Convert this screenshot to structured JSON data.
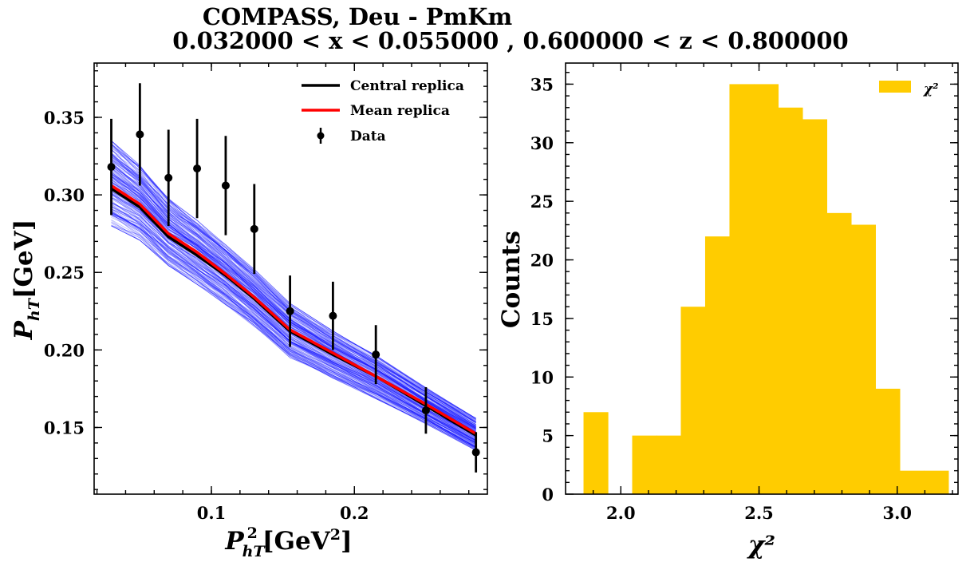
{
  "title": {
    "line1": "COMPASS, Deu - PmKm",
    "line2": "0.032000 < x < 0.055000 , 0.600000 < z < 0.800000"
  },
  "colors": {
    "replica_band": "#0000ff",
    "central": "#000000",
    "mean": "#ff0000",
    "data": "#000000",
    "hist": "#ffcc00"
  },
  "chart_data": [
    {
      "type": "line",
      "xlabel": "P_hT^2 [GeV^2]",
      "ylabel": "P_hT [GeV]",
      "xlim": [
        0.018,
        0.293
      ],
      "ylim": [
        0.107,
        0.385
      ],
      "x_ticks": [
        0.1,
        0.2
      ],
      "x_tick_labels": [
        "0.1",
        "0.2"
      ],
      "y_ticks": [
        0.15,
        0.2,
        0.25,
        0.3,
        0.35
      ],
      "y_tick_labels": [
        "0.15",
        "0.20",
        "0.25",
        "0.30",
        "0.35"
      ],
      "x": [
        0.03,
        0.05,
        0.07,
        0.09,
        0.11,
        0.13,
        0.155,
        0.185,
        0.215,
        0.25,
        0.285
      ],
      "series": [
        {
          "name": "Central replica",
          "kind": "line",
          "color": "#000000",
          "values": [
            0.304,
            0.292,
            0.273,
            0.261,
            0.248,
            0.233,
            0.212,
            0.197,
            0.183,
            0.164,
            0.145
          ]
        },
        {
          "name": "Mean replica",
          "kind": "line",
          "color": "#ff0000",
          "values": [
            0.306,
            0.294,
            0.275,
            0.263,
            0.249,
            0.234,
            0.213,
            0.198,
            0.183,
            0.165,
            0.146
          ]
        },
        {
          "name": "Data",
          "kind": "errorbar",
          "color": "#000000",
          "values": [
            0.318,
            0.339,
            0.311,
            0.317,
            0.306,
            0.278,
            0.225,
            0.222,
            0.197,
            0.161,
            0.134
          ],
          "errors": [
            0.031,
            0.033,
            0.031,
            0.032,
            0.032,
            0.029,
            0.023,
            0.022,
            0.019,
            0.015,
            0.013
          ]
        }
      ],
      "replica_band": {
        "count": 200,
        "lower": [
          0.277,
          0.268,
          0.252,
          0.24,
          0.227,
          0.213,
          0.193,
          0.18,
          0.167,
          0.151,
          0.134
        ],
        "upper": [
          0.338,
          0.322,
          0.3,
          0.286,
          0.27,
          0.254,
          0.232,
          0.214,
          0.198,
          0.177,
          0.157
        ]
      },
      "legend": {
        "position": "upper-right",
        "entries": [
          "Central replica",
          "Mean replica",
          "Data"
        ]
      }
    },
    {
      "type": "bar",
      "subtype": "histogram",
      "xlabel": "χ²",
      "ylabel": "Counts",
      "xlim": [
        1.8,
        3.22
      ],
      "ylim": [
        0,
        36.8
      ],
      "x_ticks": [
        2.0,
        2.5,
        3.0
      ],
      "x_tick_labels": [
        "2.0",
        "2.5",
        "3.0"
      ],
      "y_ticks": [
        0,
        5,
        10,
        15,
        20,
        25,
        30,
        35
      ],
      "y_tick_labels": [
        "0",
        "5",
        "10",
        "15",
        "20",
        "25",
        "30",
        "35"
      ],
      "bin_edges": [
        1.865,
        1.953,
        2.041,
        2.129,
        2.217,
        2.305,
        2.393,
        2.481,
        2.569,
        2.657,
        2.745,
        2.833,
        2.921,
        3.009,
        3.097,
        3.185
      ],
      "counts": [
        7,
        0,
        5,
        5,
        16,
        22,
        35,
        35,
        33,
        32,
        24,
        23,
        9,
        2,
        2
      ],
      "color": "#ffcc00",
      "legend": {
        "position": "upper-right",
        "entries": [
          "χ²"
        ]
      }
    }
  ]
}
